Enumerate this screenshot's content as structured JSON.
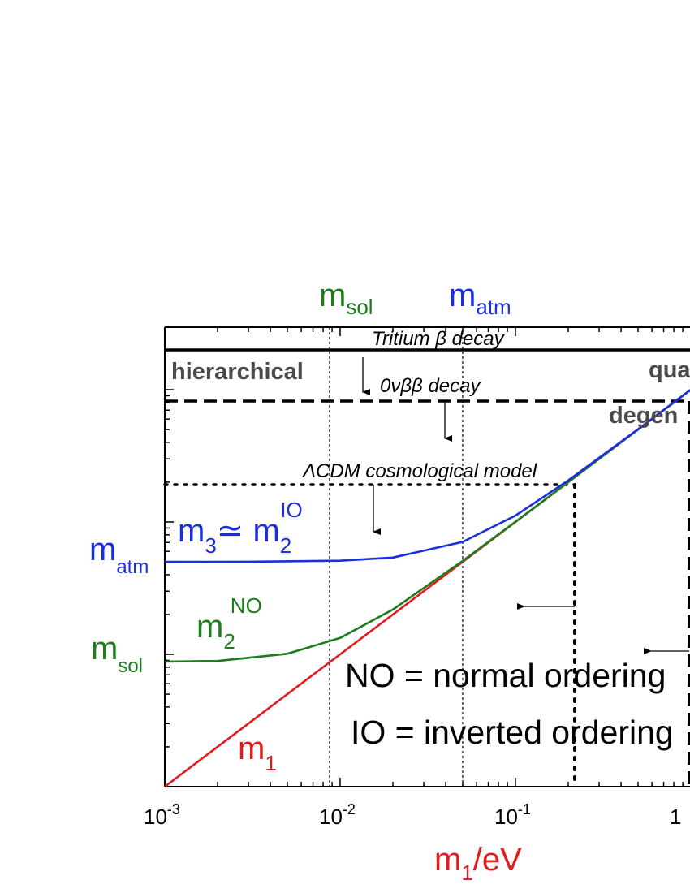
{
  "chart_data": {
    "type": "line",
    "xscale": "log",
    "yscale": "log",
    "xlim": [
      0.001,
      1
    ],
    "ylim": [
      0.001,
      1
    ],
    "xlabel": {
      "main": "m",
      "sub": "1",
      "suffix": "/eV"
    },
    "x_ticks": [
      {
        "base": "10",
        "exp": "-3",
        "value": 0.001
      },
      {
        "base": "10",
        "exp": "-2",
        "value": 0.01
      },
      {
        "base": "10",
        "exp": "-1",
        "value": 0.1
      },
      {
        "base": "1",
        "exp": "",
        "value": 1
      }
    ],
    "masses": {
      "m_sol": 0.0087,
      "m_atm": 0.05
    },
    "series": [
      {
        "key": "m1",
        "color": "#e41a1c",
        "x": [
          0.001,
          0.003,
          0.01,
          0.03,
          0.1,
          0.3,
          1
        ],
        "y": [
          0.001,
          0.003,
          0.01,
          0.03,
          0.1,
          0.3,
          1
        ]
      },
      {
        "key": "m2_NO",
        "color": "#1e7b1e",
        "x": [
          0.001,
          0.002,
          0.005,
          0.01,
          0.02,
          0.05,
          0.1,
          0.2,
          0.5,
          1
        ],
        "y": [
          0.0088,
          0.0089,
          0.0101,
          0.0133,
          0.0218,
          0.0508,
          0.1004,
          0.2002,
          0.5001,
          1
        ]
      },
      {
        "key": "m3_IO",
        "color": "#1a2ee0",
        "x": [
          0.001,
          0.003,
          0.01,
          0.02,
          0.05,
          0.1,
          0.2,
          0.5,
          1
        ],
        "y": [
          0.05,
          0.0501,
          0.051,
          0.0539,
          0.0707,
          0.1118,
          0.2062,
          0.5025,
          1.0012
        ]
      }
    ],
    "limits": [
      {
        "name": "Tritium β decay",
        "y": 2.0,
        "style": "solid"
      },
      {
        "name": "0νββ decay",
        "y": 0.8,
        "style": "dashed"
      },
      {
        "name": "ΛCDM cosmological model",
        "y": 0.19,
        "style": "dotted"
      }
    ],
    "annotations": {
      "top_msol": {
        "main": "m",
        "sub": "sol"
      },
      "top_matm": {
        "main": "m",
        "sub": "atm"
      },
      "left_matm": {
        "main": "m",
        "sub": "atm"
      },
      "left_msol": {
        "main": "m",
        "sub": "sol"
      },
      "label_m3": {
        "main": "m",
        "sub": "3",
        "sym": "≃ ",
        "main2": "m",
        "sub2": "2",
        "sup2": "IO"
      },
      "label_m2no": {
        "main": "m",
        "sub": "2",
        "sup": "NO"
      },
      "label_m1": {
        "main": "m",
        "sub": "1"
      },
      "tritium": "Tritium β decay",
      "zeronu": "0νββ decay",
      "lcdm": "ΛCDM cosmological model",
      "hierarchical": "hierarchical",
      "quasi": "qua",
      "degen": "degen",
      "legend_no": "NO = normal ordering",
      "legend_io": "IO = inverted ordering"
    },
    "colors": {
      "red": "#e41a1c",
      "green": "#1e7b1e",
      "blue": "#1a2ee0",
      "gray": "#4a4a4a"
    }
  }
}
